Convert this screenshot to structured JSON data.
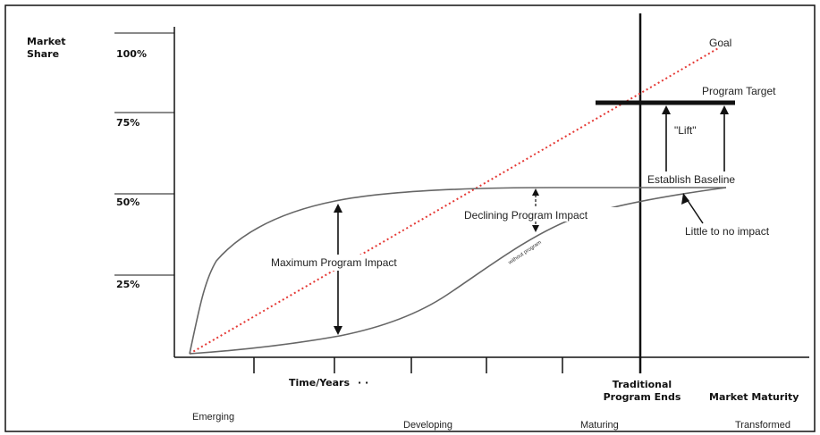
{
  "axis": {
    "y_title": [
      "Market",
      "Share"
    ],
    "x_title": "Time/Years",
    "x_title_suffix": "· ·",
    "y_ticks": [
      "100%",
      "75%",
      "50%",
      "25%"
    ]
  },
  "phases": [
    "Emerging",
    "Developing",
    "Maturing",
    "Transformed"
  ],
  "market_maturity": "Market Maturity",
  "program_ends": [
    "Traditional",
    "Program Ends"
  ],
  "annotations": {
    "goal": "Goal",
    "program_target": "Program Target",
    "lift": "\"Lift\"",
    "establish_baseline": "Establish Baseline",
    "declining_impact": "Declining Program Impact",
    "little_impact": "Little to no impact",
    "maximum_impact": "Maximum Program Impact",
    "curve_label": "without program"
  },
  "colors": {
    "axis": "#111111",
    "curve": "#666666",
    "goal_line": "#e53935",
    "grid": "#444444"
  },
  "chart_data": {
    "type": "line",
    "xlabel": "Time/Years",
    "ylabel": "Market Share",
    "ylim": [
      0,
      100
    ],
    "y_ticks": [
      25,
      50,
      75,
      100
    ],
    "series": [
      {
        "name": "Goal",
        "style": "dotted-red",
        "points": [
          [
            0,
            0
          ],
          [
            1,
            100
          ]
        ]
      },
      {
        "style": "gray",
        "points": [
          [
            0,
            0
          ],
          [
            0.03,
            30
          ],
          [
            0.15,
            44
          ],
          [
            0.3,
            50
          ],
          [
            0.55,
            52
          ],
          [
            1,
            52
          ]
        ]
      },
      {
        "style": "gray",
        "points": [
          [
            0,
            0
          ],
          [
            0.3,
            3
          ],
          [
            0.48,
            12
          ],
          [
            0.6,
            30
          ],
          [
            0.7,
            42
          ],
          [
            0.85,
            49
          ],
          [
            1,
            52
          ]
        ]
      }
    ],
    "program_target": 79,
    "baseline": 52
  }
}
